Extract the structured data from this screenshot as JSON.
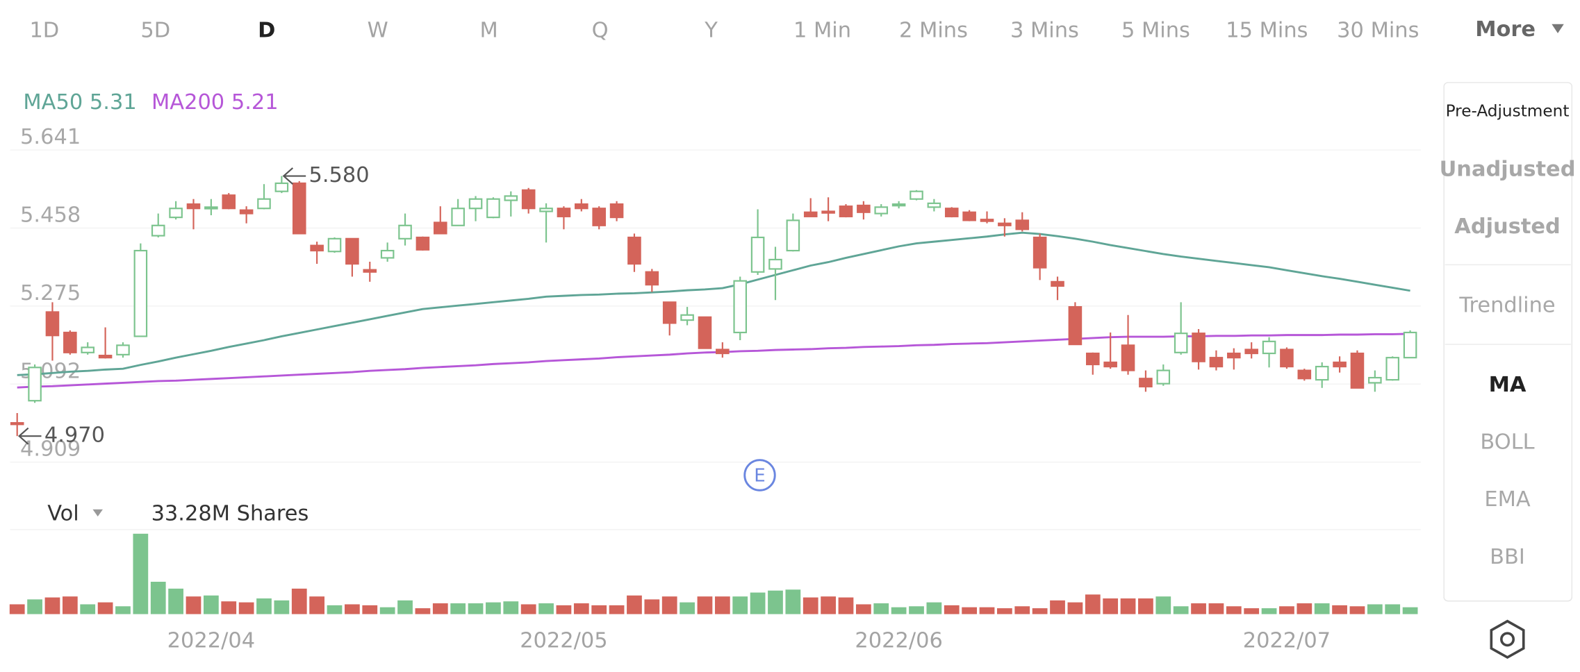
{
  "toolbar": {
    "tabs": [
      "1D",
      "5D",
      "D",
      "W",
      "M",
      "Q",
      "Y",
      "1 Min",
      "2 Mins",
      "3 Mins",
      "5 Mins",
      "15 Mins",
      "30 Mins"
    ],
    "active_tab": "D",
    "more": "More"
  },
  "side_panel": {
    "items": [
      "Pre-Adjustment",
      "Unadjusted",
      "Adjusted",
      "Trendline",
      "MA",
      "BOLL",
      "EMA",
      "BBI"
    ],
    "active": "MA"
  },
  "chart_data": {
    "type": "candlestick",
    "categories": [
      null,
      null,
      null,
      null,
      null,
      null,
      null,
      null,
      null,
      null,
      null,
      "2022/04",
      null,
      null,
      null,
      null,
      null,
      null,
      null,
      null,
      null,
      null,
      null,
      null,
      null,
      null,
      null,
      null,
      null,
      null,
      null,
      "2022/05",
      null,
      null,
      null,
      null,
      null,
      null,
      null,
      null,
      null,
      null,
      null,
      null,
      null,
      null,
      null,
      null,
      null,
      null,
      "2022/06",
      null,
      null,
      null,
      null,
      null,
      null,
      null,
      null,
      null,
      null,
      null,
      null,
      null,
      null,
      null,
      null,
      null,
      null,
      null,
      null,
      null,
      "2022/07",
      null,
      null,
      null,
      null,
      null,
      null,
      null
    ],
    "open": [
      5.001,
      5.053,
      5.261,
      5.213,
      5.166,
      5.159,
      5.161,
      5.204,
      5.44,
      5.483,
      5.514,
      5.504,
      5.535,
      5.5,
      5.504,
      5.544,
      5.563,
      5.417,
      5.403,
      5.433,
      5.36,
      5.388,
      5.433,
      5.436,
      5.471,
      5.464,
      5.504,
      5.483,
      5.523,
      5.547,
      5.497,
      5.504,
      5.514,
      5.504,
      5.514,
      5.436,
      5.355,
      5.284,
      5.242,
      5.249,
      5.173,
      5.213,
      5.355,
      5.362,
      5.405,
      5.495,
      5.497,
      5.509,
      5.511,
      5.492,
      5.511,
      5.526,
      5.507,
      5.504,
      5.495,
      5.478,
      5.469,
      5.476,
      5.436,
      5.332,
      5.273,
      5.164,
      5.143,
      5.183,
      5.105,
      5.093,
      5.166,
      5.211,
      5.154,
      5.164,
      5.173,
      5.164,
      5.173,
      5.124,
      5.102,
      5.143,
      5.164,
      5.095,
      5.102,
      5.154
    ],
    "high": [
      5.024,
      5.138,
      5.284,
      5.218,
      5.19,
      5.225,
      5.19,
      5.422,
      5.492,
      5.521,
      5.526,
      5.526,
      5.54,
      5.509,
      5.561,
      5.58,
      5.568,
      5.426,
      5.436,
      5.433,
      5.379,
      5.424,
      5.492,
      5.438,
      5.509,
      5.526,
      5.533,
      5.53,
      5.544,
      5.552,
      5.516,
      5.509,
      5.526,
      5.509,
      5.521,
      5.445,
      5.362,
      5.284,
      5.273,
      5.249,
      5.19,
      5.344,
      5.502,
      5.414,
      5.492,
      5.528,
      5.53,
      5.514,
      5.521,
      5.514,
      5.521,
      5.547,
      5.526,
      5.507,
      5.5,
      5.497,
      5.481,
      5.495,
      5.445,
      5.344,
      5.284,
      5.166,
      5.213,
      5.254,
      5.124,
      5.138,
      5.284,
      5.221,
      5.171,
      5.176,
      5.19,
      5.202,
      5.178,
      5.128,
      5.143,
      5.157,
      5.171,
      5.124,
      5.157,
      5.218
    ],
    "low": [
      4.97,
      5.048,
      5.147,
      5.161,
      5.161,
      5.152,
      5.154,
      5.204,
      5.436,
      5.478,
      5.455,
      5.488,
      5.502,
      5.469,
      5.502,
      5.54,
      5.445,
      5.374,
      5.4,
      5.344,
      5.332,
      5.379,
      5.417,
      5.405,
      5.445,
      5.464,
      5.474,
      5.481,
      5.485,
      5.492,
      5.424,
      5.455,
      5.497,
      5.455,
      5.474,
      5.355,
      5.308,
      5.206,
      5.23,
      5.176,
      5.154,
      5.195,
      5.348,
      5.289,
      5.403,
      5.485,
      5.474,
      5.483,
      5.478,
      5.485,
      5.504,
      5.523,
      5.497,
      5.483,
      5.474,
      5.469,
      5.438,
      5.45,
      5.336,
      5.289,
      5.185,
      5.114,
      5.128,
      5.114,
      5.074,
      5.088,
      5.161,
      5.126,
      5.124,
      5.126,
      5.152,
      5.131,
      5.128,
      5.1,
      5.083,
      5.119,
      5.083,
      5.074,
      5.1,
      5.154
    ],
    "close": [
      5.0,
      5.131,
      5.206,
      5.166,
      5.178,
      5.154,
      5.183,
      5.405,
      5.464,
      5.504,
      5.504,
      5.507,
      5.504,
      5.492,
      5.526,
      5.563,
      5.445,
      5.405,
      5.433,
      5.374,
      5.355,
      5.405,
      5.464,
      5.407,
      5.445,
      5.504,
      5.526,
      5.526,
      5.533,
      5.504,
      5.504,
      5.485,
      5.504,
      5.464,
      5.483,
      5.374,
      5.325,
      5.235,
      5.254,
      5.176,
      5.164,
      5.334,
      5.436,
      5.384,
      5.476,
      5.485,
      5.495,
      5.485,
      5.495,
      5.507,
      5.514,
      5.544,
      5.516,
      5.485,
      5.476,
      5.474,
      5.464,
      5.455,
      5.365,
      5.322,
      5.185,
      5.138,
      5.133,
      5.124,
      5.086,
      5.124,
      5.211,
      5.145,
      5.133,
      5.154,
      5.164,
      5.192,
      5.133,
      5.105,
      5.133,
      5.133,
      5.083,
      5.107,
      5.154,
      5.213
    ],
    "up_color": "#7cc48e",
    "down_color": "#d4645a",
    "ylim": [
      4.909,
      5.641
    ],
    "yticks": [
      5.641,
      5.458,
      5.275,
      5.092,
      4.909
    ],
    "grid": true,
    "series": [
      {
        "name": "MA50",
        "value_label": "5.31",
        "color": "#5fa596",
        "values": [
          5.113,
          5.115,
          5.118,
          5.121,
          5.123,
          5.126,
          5.128,
          5.137,
          5.145,
          5.154,
          5.162,
          5.17,
          5.179,
          5.187,
          5.195,
          5.204,
          5.212,
          5.22,
          5.228,
          5.236,
          5.244,
          5.252,
          5.26,
          5.268,
          5.272,
          5.276,
          5.28,
          5.284,
          5.288,
          5.292,
          5.297,
          5.299,
          5.301,
          5.302,
          5.304,
          5.305,
          5.307,
          5.309,
          5.312,
          5.314,
          5.317,
          5.326,
          5.337,
          5.348,
          5.359,
          5.37,
          5.378,
          5.388,
          5.397,
          5.406,
          5.415,
          5.422,
          5.426,
          5.43,
          5.434,
          5.438,
          5.443,
          5.447,
          5.444,
          5.439,
          5.433,
          5.426,
          5.418,
          5.411,
          5.404,
          5.397,
          5.391,
          5.386,
          5.381,
          5.376,
          5.371,
          5.366,
          5.359,
          5.352,
          5.345,
          5.339,
          5.332,
          5.325,
          5.318,
          5.311
        ]
      },
      {
        "name": "MA200",
        "value_label": "5.21",
        "color": "#b657d8",
        "values": [
          5.084,
          5.086,
          5.087,
          5.089,
          5.091,
          5.093,
          5.095,
          5.097,
          5.099,
          5.1,
          5.102,
          5.104,
          5.106,
          5.108,
          5.11,
          5.112,
          5.114,
          5.116,
          5.118,
          5.12,
          5.123,
          5.125,
          5.127,
          5.13,
          5.132,
          5.134,
          5.136,
          5.139,
          5.141,
          5.143,
          5.146,
          5.148,
          5.15,
          5.152,
          5.155,
          5.157,
          5.159,
          5.161,
          5.164,
          5.166,
          5.167,
          5.169,
          5.17,
          5.172,
          5.173,
          5.174,
          5.176,
          5.177,
          5.179,
          5.18,
          5.181,
          5.183,
          5.184,
          5.186,
          5.187,
          5.188,
          5.19,
          5.192,
          5.194,
          5.196,
          5.198,
          5.2,
          5.202,
          5.203,
          5.203,
          5.203,
          5.204,
          5.204,
          5.205,
          5.205,
          5.206,
          5.206,
          5.207,
          5.207,
          5.207,
          5.208,
          5.208,
          5.209,
          5.209,
          5.21
        ]
      }
    ],
    "annotations": [
      {
        "label": "5.580",
        "value": 5.58
      },
      {
        "label": "4.970",
        "value": 4.97
      }
    ],
    "event_marker": "E",
    "volume": {
      "label": "Vol",
      "readout": "33.28M Shares",
      "ylim": [
        0,
        400
      ],
      "values": [
        47.5,
        71.3,
        80.8,
        85.5,
        47.5,
        57,
        38,
        389.5,
        156.8,
        123.5,
        85.5,
        90.3,
        61.8,
        57,
        76,
        66.5,
        123.5,
        85.5,
        42.8,
        47.5,
        42.8,
        33.3,
        66.5,
        28.5,
        52.3,
        52.3,
        52.3,
        57,
        61.8,
        47.5,
        52.3,
        42.8,
        52.3,
        42.8,
        42.8,
        90.3,
        71.3,
        85.5,
        57,
        85.5,
        85.5,
        85.5,
        104.5,
        114,
        118.8,
        80.8,
        85.5,
        80.8,
        47.5,
        52.3,
        33.3,
        38,
        57,
        42.8,
        33.3,
        33.3,
        28.5,
        38,
        28.5,
        66.5,
        57,
        95,
        76,
        76,
        76,
        85.5,
        38,
        52.3,
        52.3,
        38,
        28.5,
        28.5,
        38,
        52.3,
        52.3,
        42.8,
        38,
        47.5,
        47.5,
        33.28
      ]
    }
  }
}
